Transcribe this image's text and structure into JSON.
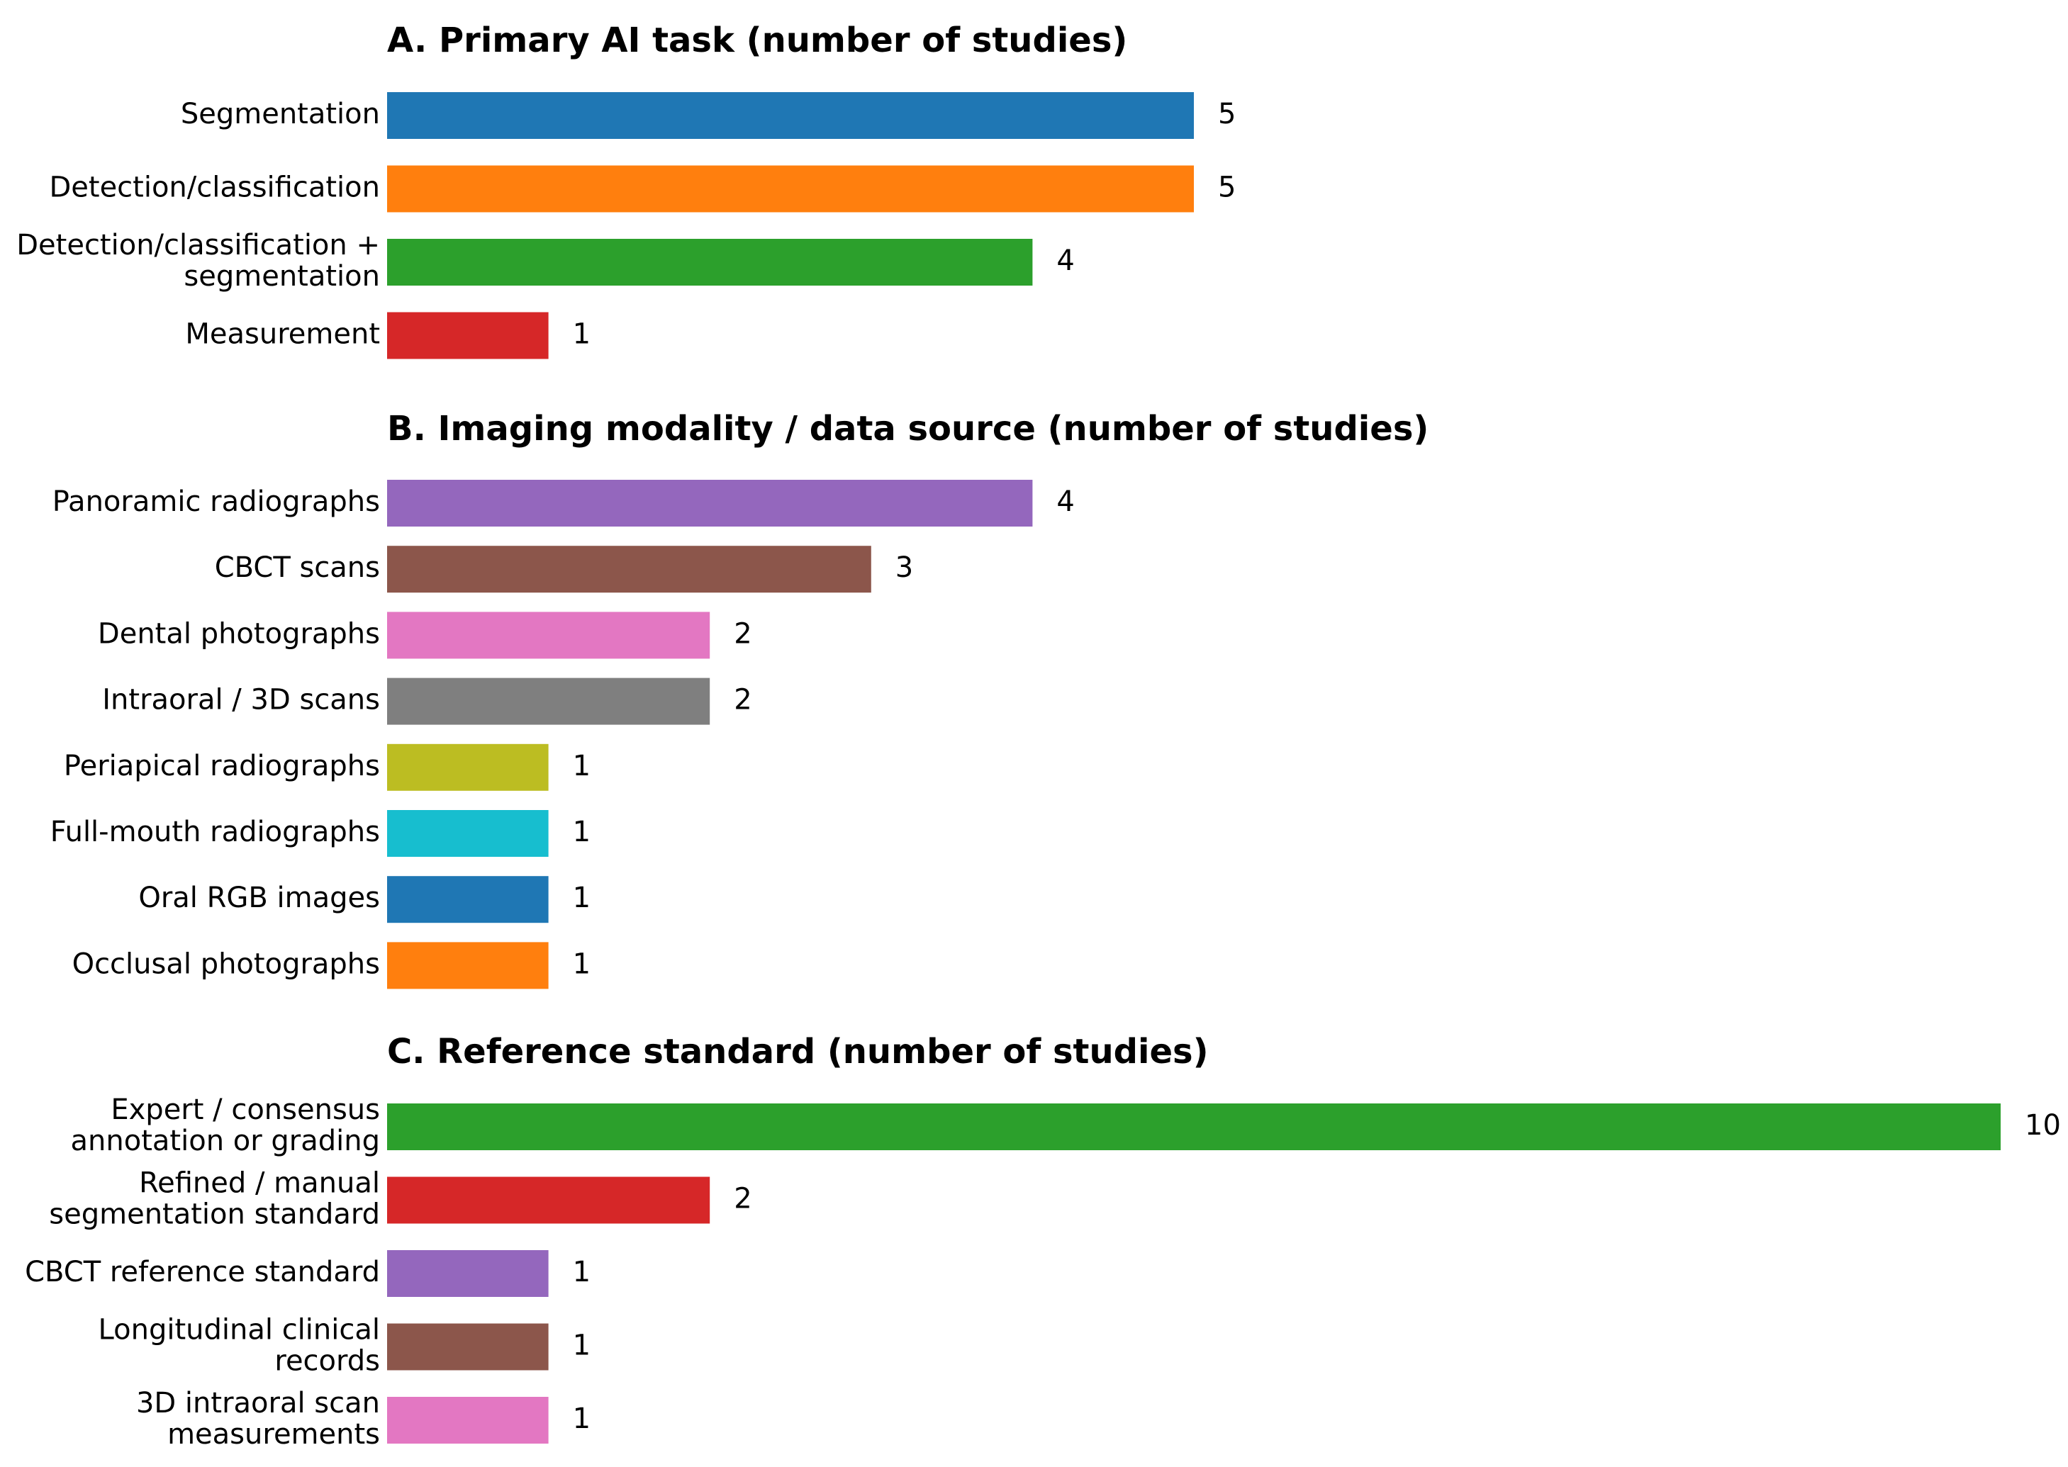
{
  "chart_data": [
    {
      "type": "bar",
      "orientation": "horizontal",
      "title": "A. Primary AI task (number of studies)",
      "xlabel": "",
      "ylabel": "",
      "xlim": [
        0,
        10
      ],
      "grid": false,
      "categories": [
        "Segmentation",
        "Detection/classification",
        "Detection/classification +\nsegmentation",
        "Measurement"
      ],
      "values": [
        5,
        5,
        4,
        1
      ],
      "colors": [
        "#1f77b4",
        "#ff7f0e",
        "#2ca02c",
        "#d62728"
      ]
    },
    {
      "type": "bar",
      "orientation": "horizontal",
      "title": "B. Imaging modality / data source (number of studies)",
      "xlabel": "",
      "ylabel": "",
      "xlim": [
        0,
        10
      ],
      "grid": false,
      "categories": [
        "Panoramic radiographs",
        "CBCT scans",
        "Dental photographs",
        "Intraoral / 3D scans",
        "Periapical radiographs",
        "Full-mouth radiographs",
        "Oral RGB images",
        "Occlusal photographs"
      ],
      "values": [
        4,
        3,
        2,
        2,
        1,
        1,
        1,
        1
      ],
      "colors": [
        "#9467bd",
        "#8c564b",
        "#e377c2",
        "#7f7f7f",
        "#bcbd22",
        "#17becf",
        "#1f77b4",
        "#ff7f0e"
      ]
    },
    {
      "type": "bar",
      "orientation": "horizontal",
      "title": "C. Reference standard (number of studies)",
      "xlabel": "",
      "ylabel": "",
      "xlim": [
        0,
        10
      ],
      "grid": false,
      "categories": [
        "Expert / consensus\nannotation or grading",
        "Refined / manual\nsegmentation standard",
        "CBCT reference standard",
        "Longitudinal clinical\nrecords",
        "3D intraoral scan\nmeasurements"
      ],
      "values": [
        10,
        2,
        1,
        1,
        1
      ],
      "colors": [
        "#2ca02c",
        "#d62728",
        "#9467bd",
        "#8c564b",
        "#e377c2"
      ]
    }
  ]
}
